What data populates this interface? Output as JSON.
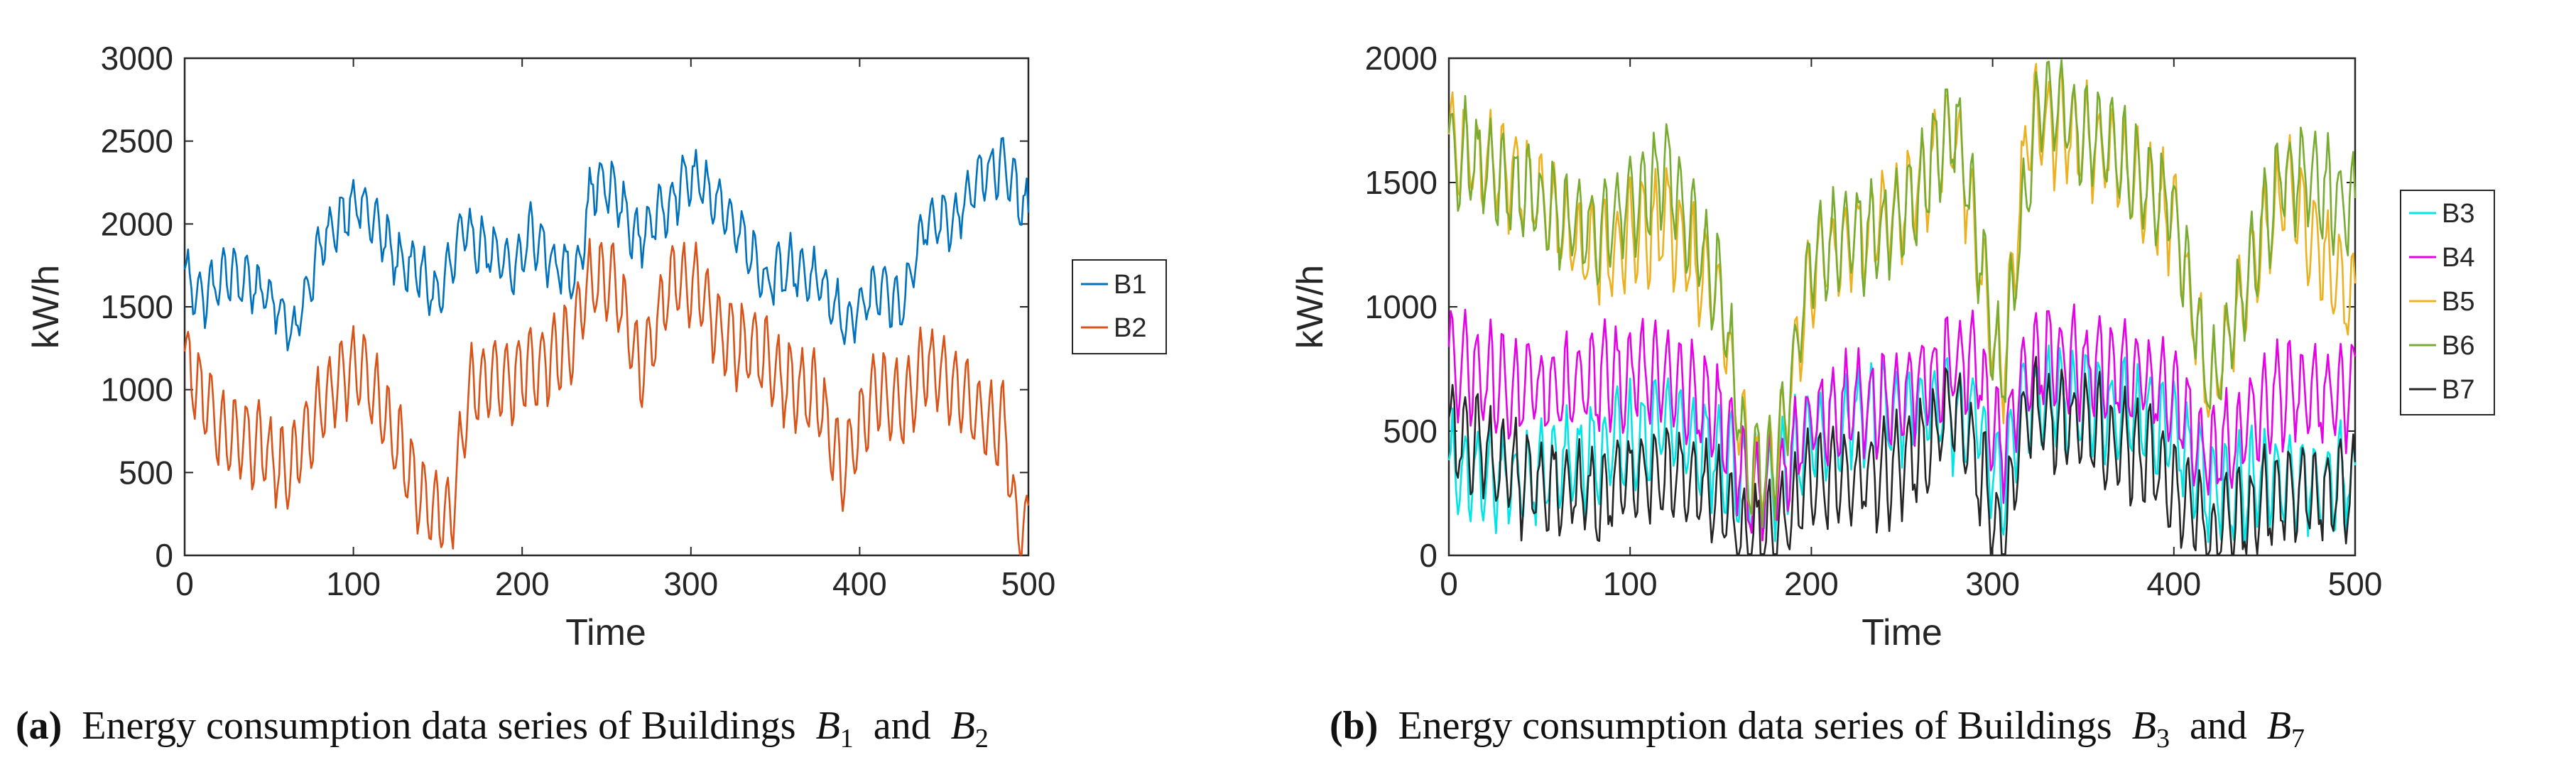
{
  "chart_data": [
    {
      "type": "line",
      "panel": "a",
      "xlabel": "Time",
      "ylabel": "kW/h",
      "xlim": [
        0,
        500
      ],
      "ylim": [
        0,
        3000
      ],
      "xticks": [
        0,
        100,
        200,
        300,
        400,
        500
      ],
      "yticks": [
        0,
        500,
        1000,
        1500,
        2000,
        2500,
        3000
      ],
      "legend_position": "right-outside",
      "series": [
        {
          "name": "B1",
          "color": "#0072BD",
          "keypoints": [
            [
              0,
              1700
            ],
            [
              10,
              1550
            ],
            [
              25,
              1700
            ],
            [
              40,
              1650
            ],
            [
              55,
              1500
            ],
            [
              65,
              1350
            ],
            [
              80,
              1850
            ],
            [
              100,
              2150
            ],
            [
              110,
              2050
            ],
            [
              125,
              1800
            ],
            [
              140,
              1700
            ],
            [
              150,
              1550
            ],
            [
              165,
              1950
            ],
            [
              180,
              1850
            ],
            [
              195,
              1700
            ],
            [
              205,
              1950
            ],
            [
              220,
              1750
            ],
            [
              232,
              1700
            ],
            [
              242,
              2250
            ],
            [
              255,
              2200
            ],
            [
              268,
              1900
            ],
            [
              280,
              2050
            ],
            [
              300,
              2300
            ],
            [
              315,
              2150
            ],
            [
              330,
              1950
            ],
            [
              345,
              1650
            ],
            [
              360,
              1750
            ],
            [
              375,
              1650
            ],
            [
              392,
              1400
            ],
            [
              410,
              1600
            ],
            [
              425,
              1500
            ],
            [
              440,
              2050
            ],
            [
              455,
              2000
            ],
            [
              470,
              2300
            ],
            [
              485,
              2350
            ],
            [
              500,
              2050
            ]
          ]
        },
        {
          "name": "B2",
          "color": "#D95319",
          "keypoints": [
            [
              0,
              1200
            ],
            [
              20,
              750
            ],
            [
              45,
              650
            ],
            [
              60,
              500
            ],
            [
              90,
              1050
            ],
            [
              105,
              1150
            ],
            [
              120,
              800
            ],
            [
              135,
              450
            ],
            [
              150,
              260
            ],
            [
              158,
              240
            ],
            [
              170,
              1050
            ],
            [
              190,
              1050
            ],
            [
              210,
              1150
            ],
            [
              230,
              1300
            ],
            [
              240,
              1650
            ],
            [
              255,
              1650
            ],
            [
              270,
              1100
            ],
            [
              290,
              1700
            ],
            [
              305,
              1600
            ],
            [
              320,
              1300
            ],
            [
              340,
              1250
            ],
            [
              355,
              1050
            ],
            [
              375,
              950
            ],
            [
              390,
              500
            ],
            [
              410,
              1000
            ],
            [
              425,
              900
            ],
            [
              440,
              1150
            ],
            [
              455,
              1050
            ],
            [
              470,
              850
            ],
            [
              487,
              750
            ],
            [
              492,
              200
            ],
            [
              500,
              170
            ]
          ]
        }
      ]
    },
    {
      "type": "line",
      "panel": "b",
      "xlabel": "Time",
      "ylabel": "kW/h",
      "xlim": [
        0,
        500
      ],
      "ylim": [
        0,
        2000
      ],
      "xticks": [
        0,
        100,
        200,
        300,
        400,
        500
      ],
      "yticks": [
        0,
        500,
        1000,
        1500,
        2000
      ],
      "legend_position": "right-outside",
      "series": [
        {
          "name": "B3",
          "color": "#00E5E5",
          "keypoints": [
            [
              0,
              350
            ],
            [
              40,
              300
            ],
            [
              80,
              400
            ],
            [
              120,
              550
            ],
            [
              150,
              380
            ],
            [
              165,
              290
            ],
            [
              180,
              280
            ],
            [
              200,
              500
            ],
            [
              250,
              600
            ],
            [
              290,
              550
            ],
            [
              305,
              250
            ],
            [
              320,
              650
            ],
            [
              360,
              600
            ],
            [
              400,
              500
            ],
            [
              420,
              250
            ],
            [
              460,
              300
            ],
            [
              500,
              300
            ]
          ]
        },
        {
          "name": "B4",
          "color": "#E600E6",
          "keypoints": [
            [
              0,
              800
            ],
            [
              40,
              650
            ],
            [
              80,
              700
            ],
            [
              120,
              750
            ],
            [
              150,
              550
            ],
            [
              165,
              280
            ],
            [
              180,
              300
            ],
            [
              200,
              550
            ],
            [
              250,
              650
            ],
            [
              290,
              800
            ],
            [
              305,
              400
            ],
            [
              320,
              800
            ],
            [
              360,
              750
            ],
            [
              400,
              650
            ],
            [
              420,
              400
            ],
            [
              460,
              650
            ],
            [
              500,
              650
            ]
          ]
        },
        {
          "name": "B5",
          "color": "#EDB120",
          "keypoints": [
            [
              0,
              1650
            ],
            [
              40,
              1500
            ],
            [
              80,
              1200
            ],
            [
              120,
              1350
            ],
            [
              150,
              1000
            ],
            [
              165,
              350
            ],
            [
              180,
              350
            ],
            [
              200,
              1150
            ],
            [
              250,
              1400
            ],
            [
              280,
              1700
            ],
            [
              305,
              700
            ],
            [
              320,
              1750
            ],
            [
              360,
              1650
            ],
            [
              400,
              1350
            ],
            [
              420,
              650
            ],
            [
              460,
              1500
            ],
            [
              500,
              1000
            ]
          ]
        },
        {
          "name": "B6",
          "color": "#77AC30",
          "keypoints": [
            [
              0,
              1650
            ],
            [
              40,
              1450
            ],
            [
              80,
              1300
            ],
            [
              120,
              1550
            ],
            [
              150,
              1050
            ],
            [
              165,
              350
            ],
            [
              180,
              350
            ],
            [
              200,
              1200
            ],
            [
              250,
              1350
            ],
            [
              280,
              1750
            ],
            [
              305,
              700
            ],
            [
              325,
              1850
            ],
            [
              360,
              1650
            ],
            [
              400,
              1400
            ],
            [
              420,
              650
            ],
            [
              460,
              1550
            ],
            [
              500,
              1400
            ]
          ]
        },
        {
          "name": "B7",
          "color": "#262626",
          "keypoints": [
            [
              0,
              500
            ],
            [
              40,
              300
            ],
            [
              80,
              250
            ],
            [
              120,
              350
            ],
            [
              150,
              200
            ],
            [
              160,
              90
            ],
            [
              180,
              90
            ],
            [
              200,
              300
            ],
            [
              250,
              350
            ],
            [
              280,
              600
            ],
            [
              305,
              80
            ],
            [
              320,
              600
            ],
            [
              360,
              500
            ],
            [
              400,
              300
            ],
            [
              420,
              90
            ],
            [
              460,
              250
            ],
            [
              500,
              250
            ]
          ]
        }
      ]
    }
  ],
  "captions": {
    "a": {
      "label": "(a)",
      "text": "Energy consumption data series of Buildings",
      "var1": "B",
      "sub1": "1",
      "conj": "and",
      "var2": "B",
      "sub2": "2"
    },
    "b": {
      "label": "(b)",
      "text": "Energy consumption data series of Buildings",
      "var1": "B",
      "sub1": "3",
      "conj": "and",
      "var2": "B",
      "sub2": "7"
    }
  }
}
